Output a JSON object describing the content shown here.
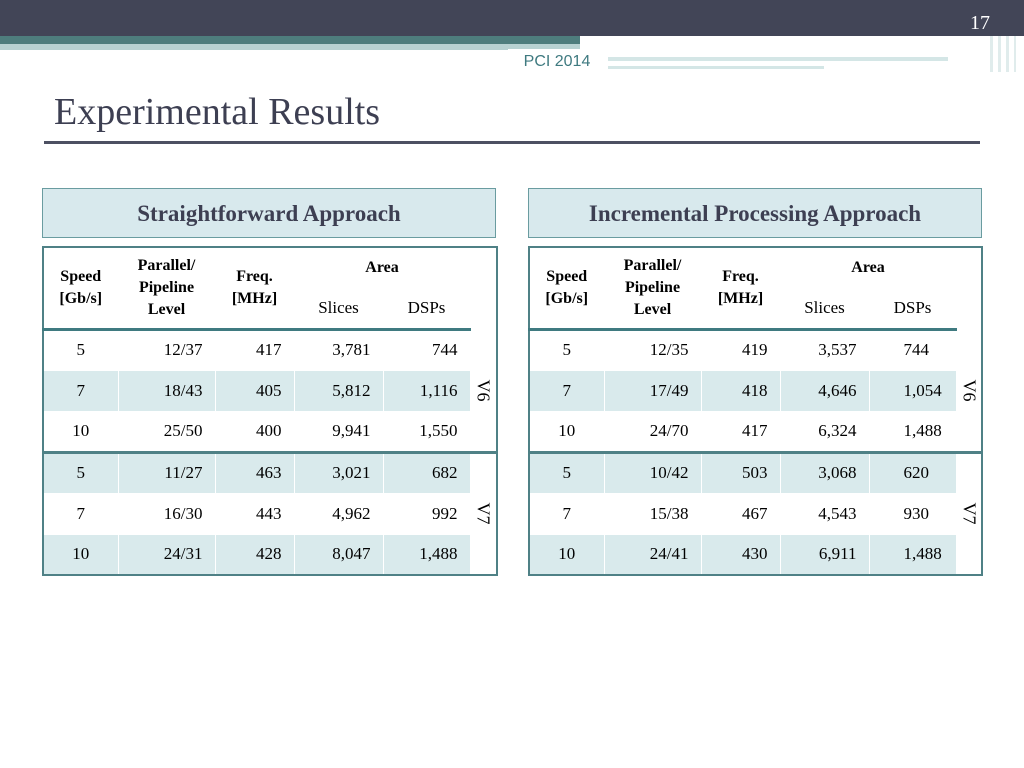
{
  "slide": {
    "number": "17",
    "tag": "PCI 2014",
    "title": "Experimental Results"
  },
  "headers": {
    "speed": "Speed [Gb/s]",
    "parallel": "Parallel/ Pipeline Level",
    "freq": "Freq. [MHz]",
    "area": "Area",
    "slices": "Slices",
    "dsps": "DSPs"
  },
  "left": {
    "heading": "Straightforward Approach",
    "rows": [
      [
        "5",
        "12/37",
        "417",
        "3,781",
        "744"
      ],
      [
        "7",
        "18/43",
        "405",
        "5,812",
        "1,116"
      ],
      [
        "10",
        "25/50",
        "400",
        "9,941",
        "1,550"
      ],
      [
        "5",
        "11/27",
        "463",
        "3,021",
        "682"
      ],
      [
        "7",
        "16/30",
        "443",
        "4,962",
        "992"
      ],
      [
        "10",
        "24/31",
        "428",
        "8,047",
        "1,488"
      ]
    ],
    "groups": [
      "V6",
      "V7"
    ]
  },
  "right": {
    "heading": "Incremental Processing Approach",
    "rows": [
      [
        "5",
        "12/35",
        "419",
        "3,537",
        "744"
      ],
      [
        "7",
        "17/49",
        "418",
        "4,646",
        "1,054"
      ],
      [
        "10",
        "24/70",
        "417",
        "6,324",
        "1,488"
      ],
      [
        "5",
        "10/42",
        "503",
        "3,068",
        "620"
      ],
      [
        "7",
        "15/38",
        "467",
        "4,543",
        "930"
      ],
      [
        "10",
        "24/41",
        "430",
        "6,911",
        "1,488"
      ]
    ],
    "groups": [
      "V6",
      "V7"
    ]
  },
  "colors": {
    "header_bar": "#424557",
    "accent": "#4e7d7d",
    "table_fill": "#d9eaec"
  }
}
